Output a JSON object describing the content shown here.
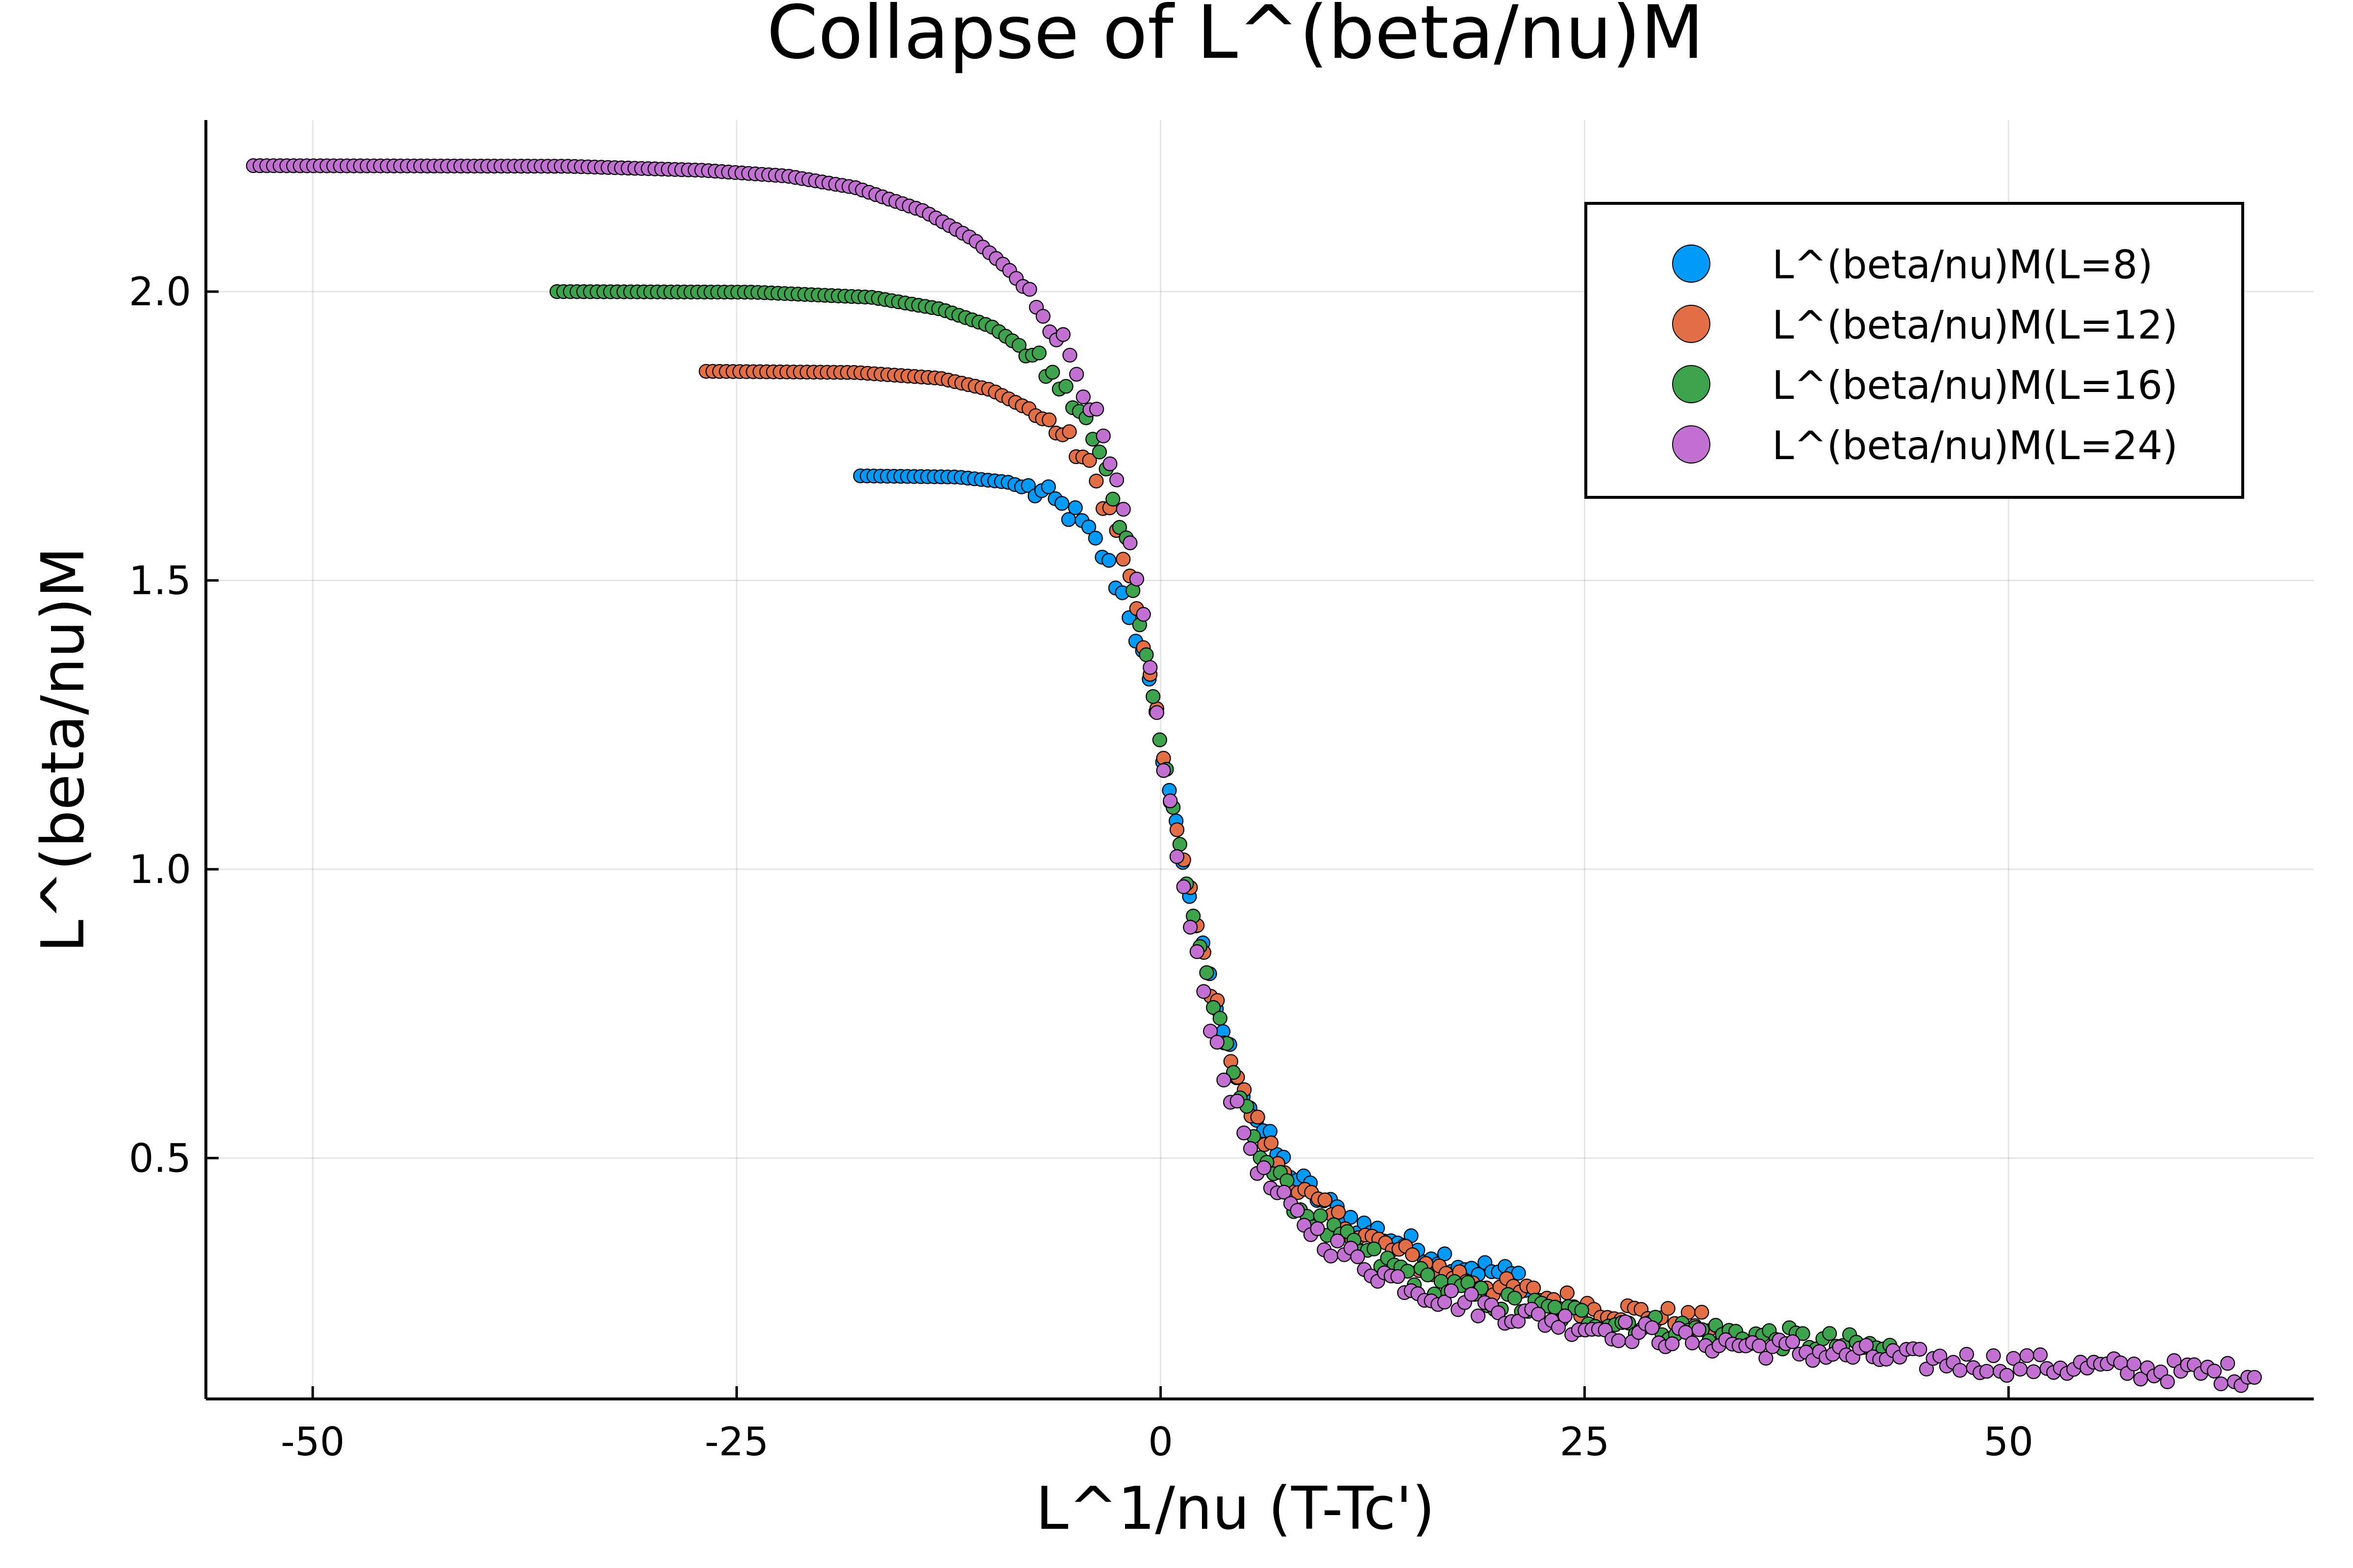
{
  "chart_data": {
    "type": "scatter",
    "title": "Collapse of L^(beta/nu)M",
    "xlabel": "L^1/nu (T-Tc')",
    "ylabel": "L^(beta/nu)M",
    "xlim": [
      -56.3,
      68.0
    ],
    "ylim": [
      0.083,
      2.297
    ],
    "xticks": [
      -50,
      -25,
      0,
      25,
      50
    ],
    "xtick_labels": [
      "-50",
      "-25",
      "0",
      "25",
      "50"
    ],
    "yticks": [
      0.5,
      1.0,
      1.5,
      2.0
    ],
    "ytick_labels": [
      "0.5",
      "1.0",
      "1.5",
      "2.0"
    ],
    "grid": true,
    "legend_position": "top-right",
    "series": [
      {
        "name": "L^(beta/nu)M(L=8)",
        "color": "#009af9",
        "xmin": -17.7,
        "xmax": 21.5,
        "count": 100,
        "anchors": [
          [
            -17.7,
            1.681
          ],
          [
            -12,
            1.679
          ],
          [
            -9,
            1.67
          ],
          [
            -7,
            1.65
          ],
          [
            -5,
            1.61
          ],
          [
            -3.5,
            1.55
          ],
          [
            -2,
            1.46
          ],
          [
            -1,
            1.36
          ],
          [
            0,
            1.22
          ],
          [
            1,
            1.06
          ],
          [
            2,
            0.92
          ],
          [
            3,
            0.79
          ],
          [
            4,
            0.69
          ],
          [
            5,
            0.61
          ],
          [
            6,
            0.55
          ],
          [
            7,
            0.5
          ],
          [
            8,
            0.465
          ],
          [
            10,
            0.415
          ],
          [
            12,
            0.38
          ],
          [
            15,
            0.345
          ],
          [
            18,
            0.315
          ],
          [
            21.5,
            0.29
          ]
        ]
      },
      {
        "name": "L^(beta/nu)M(L=12)",
        "color": "#e26f46",
        "xmin": -26.8,
        "xmax": 32.3,
        "count": 150,
        "anchors": [
          [
            -26.8,
            1.862
          ],
          [
            -18,
            1.86
          ],
          [
            -13,
            1.85
          ],
          [
            -10,
            1.83
          ],
          [
            -8,
            1.8
          ],
          [
            -6,
            1.76
          ],
          [
            -4.5,
            1.71
          ],
          [
            -3,
            1.62
          ],
          [
            -2,
            1.52
          ],
          [
            -1,
            1.39
          ],
          [
            0,
            1.22
          ],
          [
            1,
            1.06
          ],
          [
            2,
            0.92
          ],
          [
            3,
            0.79
          ],
          [
            4,
            0.69
          ],
          [
            5,
            0.6
          ],
          [
            6,
            0.54
          ],
          [
            7,
            0.49
          ],
          [
            8,
            0.45
          ],
          [
            10,
            0.4
          ],
          [
            13,
            0.35
          ],
          [
            16,
            0.31
          ],
          [
            20,
            0.275
          ],
          [
            25,
            0.245
          ],
          [
            32.3,
            0.212
          ]
        ]
      },
      {
        "name": "L^(beta/nu)M(L=16)",
        "color": "#3da44d",
        "xmin": -35.6,
        "xmax": 43.0,
        "count": 200,
        "anchors": [
          [
            -35.6,
            2.0
          ],
          [
            -24,
            1.999
          ],
          [
            -17,
            1.99
          ],
          [
            -13,
            1.97
          ],
          [
            -10,
            1.94
          ],
          [
            -8,
            1.9
          ],
          [
            -6,
            1.84
          ],
          [
            -4.5,
            1.78
          ],
          [
            -3,
            1.67
          ],
          [
            -2,
            1.56
          ],
          [
            -1,
            1.4
          ],
          [
            0,
            1.22
          ],
          [
            1,
            1.06
          ],
          [
            2,
            0.91
          ],
          [
            3,
            0.78
          ],
          [
            4,
            0.67
          ],
          [
            5,
            0.58
          ],
          [
            6,
            0.51
          ],
          [
            7,
            0.46
          ],
          [
            8,
            0.42
          ],
          [
            10,
            0.37
          ],
          [
            13,
            0.32
          ],
          [
            16,
            0.285
          ],
          [
            20,
            0.25
          ],
          [
            25,
            0.225
          ],
          [
            30,
            0.205
          ],
          [
            36,
            0.19
          ],
          [
            43,
            0.168
          ]
        ]
      },
      {
        "name": "L^(beta/nu)M(L=24)",
        "color": "#c271d2",
        "xmin": -53.5,
        "xmax": 64.5,
        "count": 300,
        "anchors": [
          [
            -53.5,
            2.218
          ],
          [
            -35,
            2.217
          ],
          [
            -27,
            2.21
          ],
          [
            -22,
            2.2
          ],
          [
            -18,
            2.18
          ],
          [
            -14,
            2.14
          ],
          [
            -11,
            2.09
          ],
          [
            -9,
            2.04
          ],
          [
            -7,
            1.97
          ],
          [
            -5.5,
            1.9
          ],
          [
            -4,
            1.8
          ],
          [
            -3,
            1.7
          ],
          [
            -2,
            1.59
          ],
          [
            -1,
            1.42
          ],
          [
            0,
            1.22
          ],
          [
            1,
            1.02
          ],
          [
            2,
            0.86
          ],
          [
            3,
            0.73
          ],
          [
            4,
            0.62
          ],
          [
            5,
            0.54
          ],
          [
            6,
            0.47
          ],
          [
            7,
            0.43
          ],
          [
            8,
            0.4
          ],
          [
            10,
            0.35
          ],
          [
            13,
            0.3
          ],
          [
            16,
            0.265
          ],
          [
            20,
            0.235
          ],
          [
            25,
            0.21
          ],
          [
            30,
            0.19
          ],
          [
            38,
            0.165
          ],
          [
            45,
            0.15
          ],
          [
            55,
            0.137
          ],
          [
            64.5,
            0.125
          ]
        ]
      }
    ]
  }
}
